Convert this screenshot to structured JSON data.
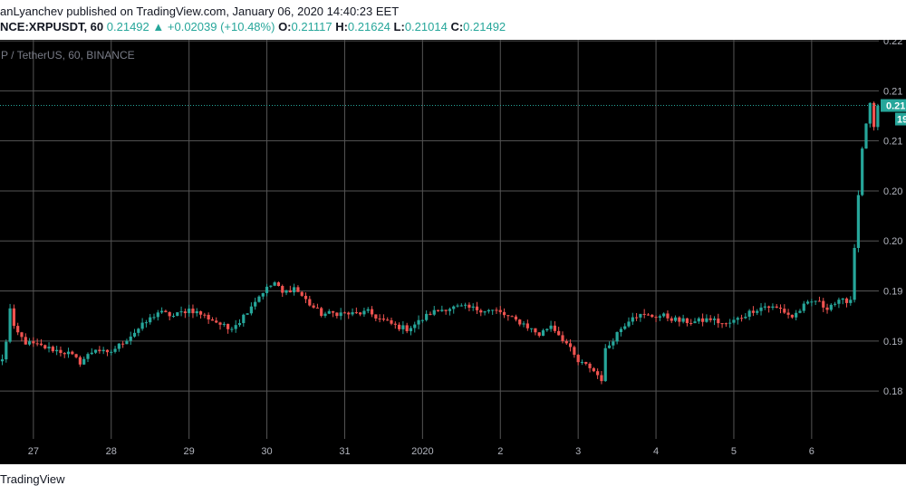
{
  "header": {
    "line1": "anLyanchev published on TradingView.com, January 06, 2020 14:40:23 EET",
    "symbol": "NCE:XRPUSDT, 60",
    "price": "0.21492",
    "change": "+0.02039 (+10.48%)",
    "o_label": "O:",
    "o_value": "0.21117",
    "h_label": "H:",
    "h_value": "0.21624",
    "l_label": "L:",
    "l_value": "0.21014",
    "c_label": "C:",
    "c_value": "0.21492"
  },
  "footer": {
    "brand": "TradingView"
  },
  "chart_data": {
    "type": "candlestick",
    "legend": "P / TetherUS, 60, BINANCE",
    "x_labels": [
      "27",
      "28",
      "29",
      "30",
      "31",
      "2020",
      "2",
      "3",
      "4",
      "5",
      "6"
    ],
    "y_tick_labels": [
      "0.22",
      "0.21",
      "0.21",
      "0.20",
      "0.20",
      "0.19",
      "0.19",
      "0.18"
    ],
    "ylim": [
      0.181,
      0.2216
    ],
    "last_price_label": "0.21",
    "countdown_label": "19",
    "colors": {
      "up": "#26a69a",
      "down": "#ef5350",
      "background": "#000000",
      "grid": "#555555"
    },
    "path": [
      [
        0,
        0.189
      ],
      [
        1,
        0.191
      ],
      [
        2,
        0.1942
      ],
      [
        3,
        0.1922
      ],
      [
        6,
        0.1908
      ],
      [
        11,
        0.1903
      ],
      [
        17,
        0.1897
      ],
      [
        20,
        0.1888
      ],
      [
        24,
        0.1902
      ],
      [
        27,
        0.1896
      ],
      [
        30,
        0.1905
      ],
      [
        35,
        0.1922
      ],
      [
        40,
        0.1939
      ],
      [
        44,
        0.1935
      ],
      [
        48,
        0.1942
      ],
      [
        51,
        0.1937
      ],
      [
        55,
        0.1929
      ],
      [
        58,
        0.1922
      ],
      [
        61,
        0.193
      ],
      [
        64,
        0.1946
      ],
      [
        67,
        0.196
      ],
      [
        70,
        0.1969
      ],
      [
        72,
        0.1958
      ],
      [
        75,
        0.1964
      ],
      [
        79,
        0.1947
      ],
      [
        82,
        0.1937
      ],
      [
        86,
        0.1938
      ],
      [
        90,
        0.1937
      ],
      [
        94,
        0.1939
      ],
      [
        97,
        0.1932
      ],
      [
        101,
        0.1925
      ],
      [
        104,
        0.1922
      ],
      [
        107,
        0.1929
      ],
      [
        110,
        0.1938
      ],
      [
        114,
        0.1943
      ],
      [
        118,
        0.1944
      ],
      [
        122,
        0.1942
      ],
      [
        127,
        0.194
      ],
      [
        131,
        0.1932
      ],
      [
        134,
        0.1927
      ],
      [
        138,
        0.1916
      ],
      [
        141,
        0.1926
      ],
      [
        145,
        0.1907
      ],
      [
        148,
        0.1888
      ],
      [
        151,
        0.1883
      ],
      [
        154,
        0.1871
      ],
      [
        155,
        0.19
      ],
      [
        158,
        0.1918
      ],
      [
        162,
        0.1936
      ],
      [
        166,
        0.1935
      ],
      [
        170,
        0.1935
      ],
      [
        174,
        0.193
      ],
      [
        178,
        0.1929
      ],
      [
        182,
        0.1932
      ],
      [
        186,
        0.1926
      ],
      [
        189,
        0.1932
      ],
      [
        193,
        0.1941
      ],
      [
        196,
        0.1945
      ],
      [
        200,
        0.1942
      ],
      [
        203,
        0.1934
      ],
      [
        206,
        0.1945
      ],
      [
        209,
        0.1951
      ],
      [
        211,
        0.1945
      ],
      [
        212,
        0.1944
      ],
      [
        213,
        0.1947
      ],
      [
        216,
        0.195
      ],
      [
        218,
        0.1952
      ],
      [
        219,
        0.2005
      ],
      [
        220,
        0.206
      ],
      [
        221,
        0.2103
      ],
      [
        222,
        0.2132
      ],
      [
        223,
        0.2149
      ],
      [
        224,
        0.2126
      ],
      [
        225,
        0.2149
      ]
    ]
  }
}
